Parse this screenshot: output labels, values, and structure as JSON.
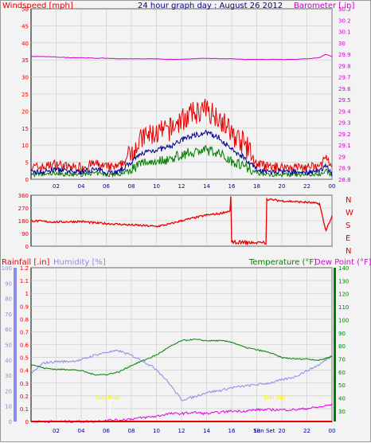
{
  "header": {
    "title": "24 hour graph day : August 26 2012",
    "wind_label": "Windspeed [mph]",
    "baro_label": "Barometer [.in]",
    "rain_label": "Rainfall [.in]",
    "humidity_label": "Humidity [%]",
    "temp_label": "Temperature (°F)",
    "dew_label": "Dew Point (°F)"
  },
  "colors": {
    "wind": "#e80000",
    "wind_avg": "#000090",
    "wind_min": "#008000",
    "baro": "#d000d0",
    "direction": "#e80000",
    "rain": "#e80000",
    "humidity": "#8a8ae8",
    "temperature": "#008000",
    "dew": "#e000e0",
    "sun": "#f0f000",
    "grid": "#c8c8c8"
  },
  "chart_data": [
    {
      "type": "line",
      "title": "24 hour graph day : August 26 2012",
      "x_ticks": [
        "02",
        "04",
        "06",
        "08",
        "10",
        "12",
        "14",
        "16",
        "18",
        "20",
        "22",
        "00"
      ],
      "ylabel": "Windspeed [mph]",
      "ylim": [
        0,
        50
      ],
      "y_ticks": [
        "0",
        "5",
        "10",
        "15",
        "20",
        "25",
        "30",
        "35",
        "40",
        "45",
        "50"
      ],
      "y2label": "Barometer [.in]",
      "y2lim": [
        28.8,
        30.3
      ],
      "y2_ticks": [
        "28.8",
        "28.9",
        "29",
        "29.1",
        "29.2",
        "29.3",
        "29.4",
        "29.5",
        "29.6",
        "29.7",
        "29.8",
        "29.9",
        "30",
        "30.1",
        "30.2",
        "30.3"
      ],
      "x_hours": [
        0,
        1,
        2,
        3,
        4,
        5,
        6,
        7,
        8,
        9,
        10,
        11,
        12,
        13,
        14,
        15,
        16,
        17,
        18,
        19,
        20,
        21,
        22,
        23,
        23.5,
        24
      ],
      "series": [
        {
          "name": "Windspeed",
          "values": [
            3,
            3,
            4,
            3,
            3,
            4,
            3,
            3,
            7,
            11,
            12,
            13,
            16,
            18,
            19,
            17,
            12,
            9,
            4,
            3,
            3,
            3,
            3,
            3,
            6,
            2
          ]
        },
        {
          "name": "Barometer",
          "values": [
            29.88,
            29.88,
            29.875,
            29.87,
            29.87,
            29.865,
            29.865,
            29.86,
            29.86,
            29.86,
            29.86,
            29.855,
            29.855,
            29.86,
            29.865,
            29.86,
            29.86,
            29.855,
            29.855,
            29.855,
            29.855,
            29.855,
            29.86,
            29.87,
            29.9,
            29.88
          ]
        }
      ]
    },
    {
      "type": "line",
      "y_ticks": [
        "0",
        "90",
        "180",
        "270",
        "360"
      ],
      "ylim": [
        0,
        360
      ],
      "y2_ticks": [
        "N",
        "W",
        "S",
        "E",
        "N"
      ],
      "x_hours": [
        0,
        2,
        4,
        5,
        6,
        8,
        10,
        11,
        12,
        13,
        14,
        15,
        15.9,
        16,
        16.3,
        17,
        18,
        18.8,
        19,
        20,
        22,
        23,
        23.5,
        24
      ],
      "series": [
        {
          "name": "Wind direction",
          "values": [
            180,
            170,
            175,
            165,
            160,
            150,
            140,
            155,
            180,
            200,
            220,
            230,
            250,
            20,
            340,
            30,
            15,
            20,
            330,
            320,
            310,
            300,
            110,
            210
          ]
        }
      ]
    },
    {
      "type": "line",
      "x_ticks": [
        "02",
        "04",
        "06",
        "08",
        "10",
        "12",
        "14",
        "16",
        "18",
        "Sun Set",
        "20",
        "22",
        "00"
      ],
      "annotations": [
        "Sun Rise",
        "Sun Set"
      ],
      "y_ticks_rain": [
        "0",
        "0.1",
        "0.2",
        "0.3",
        "0.4",
        "0.5",
        "0.6",
        "0.7",
        "0.8",
        "0.9",
        "1",
        "1.1",
        "1.2"
      ],
      "ylim_rain": [
        0,
        1.2
      ],
      "y_ticks_humidity": [
        "0",
        "10",
        "20",
        "30",
        "40",
        "50",
        "60",
        "70",
        "80",
        "90",
        "100"
      ],
      "ylim_humidity": [
        0,
        100
      ],
      "y_ticks_temp": [
        "30",
        "40",
        "50",
        "60",
        "70",
        "80",
        "90",
        "100",
        "110",
        "120",
        "130",
        "140"
      ],
      "ylim_temp": [
        22,
        140
      ],
      "x_hours": [
        0,
        1,
        2,
        3,
        4,
        5,
        6,
        7,
        8,
        9,
        10,
        11,
        12,
        13,
        14,
        15,
        16,
        17,
        18,
        19,
        20,
        21,
        22,
        23,
        24
      ],
      "series": [
        {
          "name": "Rainfall",
          "values": [
            0,
            0,
            0,
            0,
            0,
            0,
            0,
            0,
            0,
            0,
            0,
            0,
            0,
            0,
            0,
            0,
            0,
            0,
            0,
            0,
            0,
            0,
            0,
            0,
            0
          ]
        },
        {
          "name": "Humidity",
          "values": [
            31,
            38,
            39,
            39,
            40,
            43,
            45,
            46,
            43,
            39,
            34,
            25,
            14,
            16,
            19,
            20,
            22,
            23,
            24,
            25,
            27,
            29,
            33,
            37,
            43
          ]
        },
        {
          "name": "Temperature",
          "values": [
            66,
            63,
            62,
            62,
            61,
            58,
            58,
            60,
            65,
            69,
            73,
            79,
            84,
            85,
            84,
            84,
            83,
            79,
            77,
            75,
            71,
            70,
            70,
            69,
            72
          ]
        },
        {
          "name": "Dew Point",
          "values": [
            22,
            22,
            22,
            22,
            22,
            22,
            23,
            23,
            24,
            25,
            26,
            28,
            28,
            29,
            28,
            29,
            30,
            30,
            31,
            31,
            31,
            31,
            32,
            33,
            35
          ]
        }
      ]
    }
  ]
}
